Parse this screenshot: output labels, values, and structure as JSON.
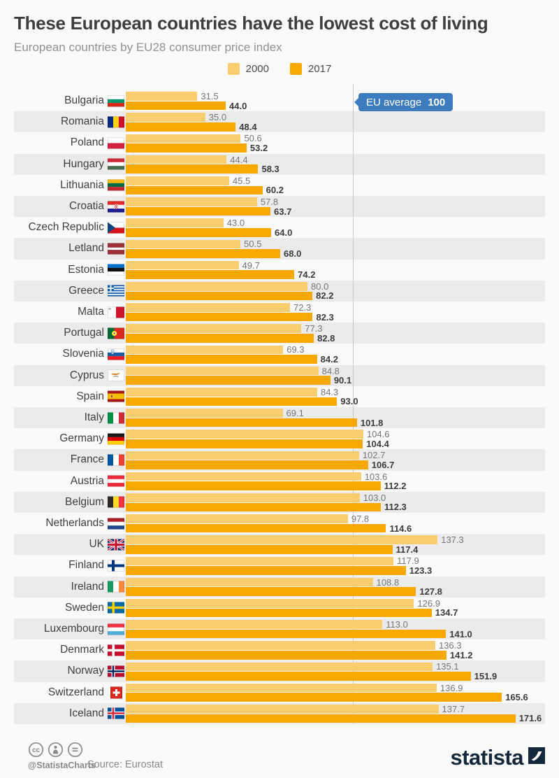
{
  "title": "These European countries have the lowest cost of living",
  "subtitle": "European countries by EU28 consumer price index",
  "legend": {
    "items": [
      {
        "label": "2000",
        "color": "#FACD6F"
      },
      {
        "label": "2017",
        "color": "#F8A801"
      }
    ]
  },
  "eu_badge": {
    "label": "EU average",
    "value": "100"
  },
  "chart_data": {
    "type": "bar",
    "orientation": "horizontal",
    "title": "European countries by EU28 consumer price index",
    "reference_line": {
      "label": "EU average",
      "value": 100
    },
    "value_range": [
      0,
      180
    ],
    "categories": [
      "Bulgaria",
      "Romania",
      "Poland",
      "Hungary",
      "Lithuania",
      "Croatia",
      "Czech Republic",
      "Letland",
      "Estonia",
      "Greece",
      "Malta",
      "Portugal",
      "Slovenia",
      "Cyprus",
      "Spain",
      "Italy",
      "Germany",
      "France",
      "Austria",
      "Belgium",
      "Netherlands",
      "UK",
      "Finland",
      "Ireland",
      "Sweden",
      "Luxembourg",
      "Denmark",
      "Norway",
      "Switzerland",
      "Iceland"
    ],
    "flags": [
      "bg",
      "ro",
      "pl",
      "hu",
      "lt",
      "hr",
      "cz",
      "lv",
      "ee",
      "gr",
      "mt",
      "pt",
      "si",
      "cy",
      "es",
      "it",
      "de",
      "fr",
      "at",
      "be",
      "nl",
      "uk",
      "fi",
      "ie",
      "se",
      "lu",
      "dk",
      "no",
      "ch",
      "is"
    ],
    "series": [
      {
        "name": "2000",
        "color": "#FACD6F",
        "values": [
          31.5,
          35.0,
          50.6,
          44.4,
          45.5,
          57.8,
          43.0,
          50.5,
          49.7,
          80.0,
          72.3,
          77.3,
          69.3,
          84.8,
          84.3,
          69.1,
          104.6,
          102.7,
          103.6,
          103.0,
          97.8,
          137.3,
          117.9,
          108.8,
          126.9,
          113.0,
          136.3,
          135.1,
          136.9,
          137.7
        ]
      },
      {
        "name": "2017",
        "color": "#F8A801",
        "values": [
          44.0,
          48.4,
          53.2,
          58.3,
          60.2,
          63.7,
          64.0,
          68.0,
          74.2,
          82.2,
          82.3,
          82.8,
          84.2,
          90.1,
          93.0,
          101.8,
          104.4,
          106.7,
          112.2,
          112.3,
          114.6,
          117.4,
          123.3,
          127.8,
          134.7,
          141.0,
          141.2,
          151.9,
          165.6,
          171.6
        ]
      }
    ],
    "grid": false,
    "legend_position": "top-center"
  },
  "footer": {
    "handle": "@StatistaCharts",
    "source": "Source: Eurostat",
    "brand": "statista",
    "license_icons": [
      "cc-icon",
      "by-person-icon",
      "nd-equals-icon"
    ]
  }
}
